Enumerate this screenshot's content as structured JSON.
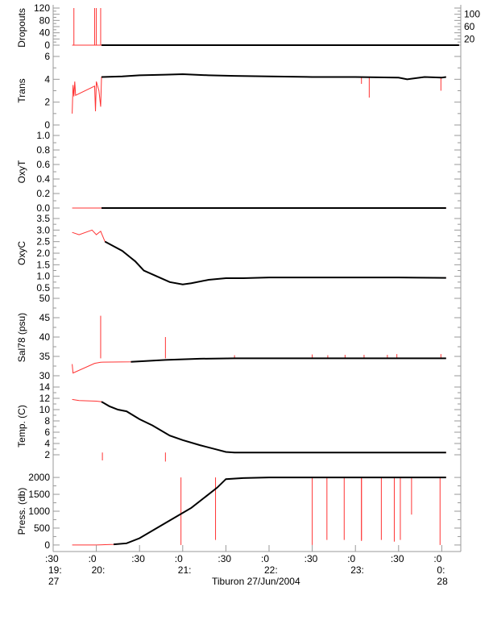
{
  "chart_data": {
    "type": "line",
    "title": "",
    "xlabel": "Tiburon 27/Jun/2004",
    "xlim": [
      19.5,
      24.22
    ],
    "x_ticks": [
      {
        "t": 19.5,
        "l1": ":30",
        "l2": "19:",
        "l3": "27"
      },
      {
        "t": 20.0,
        "l1": ":0",
        "l2": "20:",
        "l3": ""
      },
      {
        "t": 20.5,
        "l1": ":30",
        "l2": "",
        "l3": ""
      },
      {
        "t": 21.0,
        "l1": ":0",
        "l2": "21:",
        "l3": ""
      },
      {
        "t": 21.5,
        "l1": ":30",
        "l2": "",
        "l3": ""
      },
      {
        "t": 22.0,
        "l1": ":0",
        "l2": "22:",
        "l3": ""
      },
      {
        "t": 22.5,
        "l1": ":30",
        "l2": "",
        "l3": ""
      },
      {
        "t": 23.0,
        "l1": ":0",
        "l2": "23:",
        "l3": ""
      },
      {
        "t": 23.5,
        "l1": ":30",
        "l2": "",
        "l3": ""
      },
      {
        "t": 24.0,
        "l1": ":0",
        "l2": "0:",
        "l3": "28"
      }
    ],
    "panels": [
      {
        "name": "dropouts",
        "ylabel": "Dropouts",
        "ylim": [
          0,
          120
        ],
        "yticks": [
          0,
          20,
          40,
          60,
          80,
          100,
          120
        ],
        "x": [
          19.72,
          19.73,
          20.0,
          20.01,
          20.02,
          20.04,
          20.06,
          20.07,
          24.2
        ],
        "values": [
          0,
          0,
          0,
          0,
          0,
          0,
          0,
          0,
          0
        ],
        "spikes": [
          [
            19.74,
            120
          ],
          [
            19.98,
            120
          ],
          [
            20.0,
            120
          ],
          [
            20.05,
            120
          ]
        ]
      },
      {
        "name": "trans",
        "ylabel": "Trans",
        "ylim": [
          0,
          6
        ],
        "yticks": [
          0,
          2,
          4,
          6
        ],
        "x": [
          19.72,
          19.73,
          19.74,
          19.75,
          19.76,
          19.98,
          19.99,
          20.0,
          20.03,
          20.05,
          20.06,
          20.3,
          20.5,
          20.8,
          21.0,
          21.3,
          21.6,
          22.0,
          22.5,
          23.0,
          23.5,
          23.6,
          23.8,
          24.0,
          24.05
        ],
        "values": [
          1.0,
          3.5,
          2.5,
          3.8,
          2.6,
          3.4,
          1.2,
          3.8,
          3.0,
          1.6,
          4.2,
          4.25,
          4.35,
          4.4,
          4.45,
          4.35,
          4.3,
          4.25,
          4.2,
          4.2,
          4.15,
          4.0,
          4.2,
          4.15,
          4.2
        ],
        "spikes": [
          [
            23.16,
            2.4
          ],
          [
            23.07,
            3.6
          ],
          [
            23.99,
            3.0
          ]
        ]
      },
      {
        "name": "oxyt",
        "ylabel": "OxyT",
        "ylim": [
          0,
          1
        ],
        "yticks": [
          0.0,
          0.2,
          0.4,
          0.6,
          0.8,
          1.0
        ],
        "x": [
          19.72,
          20.06,
          24.05
        ],
        "values": [
          0.0,
          0.0,
          0.0
        ],
        "spikes": []
      },
      {
        "name": "oxyc",
        "ylabel": "OxyC",
        "ylim": [
          0.5,
          3.5
        ],
        "yticks": [
          0.5,
          1.0,
          1.5,
          2.0,
          2.5,
          3.0,
          3.5
        ],
        "x": [
          19.72,
          19.8,
          19.95,
          20.0,
          20.05,
          20.1,
          20.2,
          20.3,
          20.4,
          20.45,
          20.55,
          20.7,
          20.85,
          21.0,
          21.1,
          21.3,
          21.5,
          21.7,
          22.0,
          22.5,
          23.0,
          23.5,
          24.05
        ],
        "values": [
          2.9,
          2.8,
          3.0,
          2.8,
          2.95,
          2.5,
          2.3,
          2.1,
          1.8,
          1.65,
          1.25,
          1.0,
          0.75,
          0.65,
          0.7,
          0.85,
          0.92,
          0.92,
          0.95,
          0.95,
          0.95,
          0.95,
          0.93
        ],
        "spikes": []
      },
      {
        "name": "sal78",
        "ylabel": "Sal78 (psu)",
        "ylim": [
          30,
          50
        ],
        "yticks": [
          30,
          35,
          40,
          45,
          50
        ],
        "x": [
          19.72,
          19.73,
          19.98,
          20.05,
          20.4,
          20.8,
          21.2,
          21.6,
          22.0,
          23.0,
          24.05
        ],
        "values": [
          33.0,
          30.7,
          33.2,
          33.5,
          33.6,
          34.1,
          34.4,
          34.5,
          34.5,
          34.5,
          34.5
        ],
        "spikes": [
          [
            20.05,
            45.5
          ],
          [
            20.8,
            40
          ],
          [
            21.6,
            35.3
          ],
          [
            22.5,
            35.5
          ],
          [
            22.68,
            35.3
          ],
          [
            22.88,
            35.4
          ],
          [
            23.1,
            35.4
          ],
          [
            23.37,
            35.4
          ],
          [
            23.48,
            35.6
          ],
          [
            23.99,
            35.6
          ]
        ]
      },
      {
        "name": "temp",
        "ylabel": "Temp. (C)",
        "ylim": [
          0,
          14
        ],
        "yticks": [
          2,
          4,
          6,
          8,
          10,
          12,
          14
        ],
        "x": [
          19.72,
          19.8,
          20.0,
          20.06,
          20.15,
          20.25,
          20.35,
          20.5,
          20.65,
          20.85,
          21.0,
          21.2,
          21.4,
          21.5,
          21.6,
          22.0,
          23.0,
          24.05
        ],
        "values": [
          11.8,
          11.6,
          11.5,
          11.4,
          10.6,
          10.0,
          9.7,
          8.3,
          7.2,
          5.4,
          4.6,
          3.7,
          2.9,
          2.5,
          2.4,
          2.4,
          2.4,
          2.4
        ],
        "spikes": [
          [
            20.07,
            1.0
          ],
          [
            20.8,
            0.8
          ]
        ]
      },
      {
        "name": "press",
        "ylabel": "Press. (db)",
        "ylim": [
          -50,
          2050
        ],
        "yticks": [
          0,
          500,
          1000,
          1500,
          2000
        ],
        "x": [
          19.72,
          20.0,
          20.2,
          20.35,
          20.5,
          20.8,
          21.1,
          21.4,
          21.5,
          21.7,
          22.0,
          23.0,
          24.05
        ],
        "values": [
          0,
          0,
          20,
          50,
          200,
          650,
          1100,
          1700,
          1950,
          1980,
          2000,
          2000,
          2000
        ],
        "spikes": [
          [
            20.98,
            0
          ],
          [
            21.38,
            150
          ],
          [
            22.5,
            0
          ],
          [
            22.67,
            150
          ],
          [
            22.87,
            150
          ],
          [
            23.07,
            150
          ],
          [
            23.3,
            150
          ],
          [
            23.45,
            100
          ],
          [
            23.52,
            150
          ],
          [
            23.65,
            900
          ],
          [
            23.98,
            0
          ],
          [
            23.07,
            120
          ]
        ]
      }
    ]
  }
}
